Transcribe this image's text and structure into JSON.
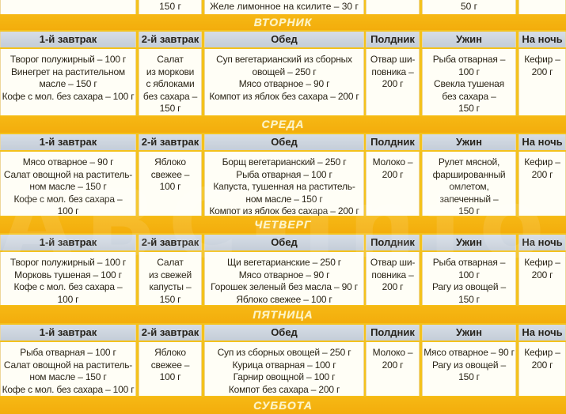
{
  "columns": [
    "1-й завтрак",
    "2-й завтрак",
    "Обед",
    "Полдник",
    "Ужин",
    "На ночь"
  ],
  "top_partial_row": {
    "c1": "",
    "c2": "150 г",
    "c3": "Желе лимонное на ксилите – 30 г",
    "c4": "",
    "c5": "50 г",
    "c6": ""
  },
  "days": [
    {
      "name": "ВТОРНИК",
      "meals": {
        "breakfast1": [
          "Творог полужирный – 100 г",
          "Винегрет на растительном",
          "масле – 150 г",
          "Кофе с мол. без сахара – 100 г"
        ],
        "breakfast2": [
          "Салат",
          "из моркови",
          "с яблоками",
          "без сахара –",
          "150 г"
        ],
        "lunch": [
          "Суп вегетарианский из сборных",
          "овощей – 250 г",
          "Мясо отварное – 90 г",
          "Компот из яблок без сахара – 200 г"
        ],
        "snack": [
          "Отвар ши-",
          "повника –",
          "200 г"
        ],
        "dinner": [
          "Рыба отварная –",
          "100 г",
          "Свекла тушеная",
          "без сахара –",
          "150 г"
        ],
        "night": [
          "Кефир –",
          "200 г"
        ]
      }
    },
    {
      "name": "СРЕДА",
      "meals": {
        "breakfast1": [
          "Мясо отварное – 90 г",
          "Салат овощной на раститель-",
          "ном масле – 150 г",
          "Кофе с мол. без сахара –",
          "100 г"
        ],
        "breakfast2": [
          "Яблоко",
          "свежее –",
          "100 г"
        ],
        "lunch": [
          "Борщ вегетарианский – 250 г",
          "Рыба отварная – 100 г",
          "Капуста, тушенная на раститель-",
          "ном масле – 150 г",
          "Компот из яблок без сахара – 200 г"
        ],
        "snack": [
          "Молоко –",
          "200 г"
        ],
        "dinner": [
          "Рулет мясной,",
          "фаршированный",
          "омлетом,",
          "запеченный –",
          "150 г"
        ],
        "night": [
          "Кефир –",
          "200 г"
        ]
      }
    },
    {
      "name": "ЧЕТВЕРГ",
      "meals": {
        "breakfast1": [
          "Творог полужирный – 100 г",
          "Морковь тушеная – 100 г",
          "Кофе с мол. без сахара –",
          "100 г"
        ],
        "breakfast2": [
          "Салат",
          "из свежей",
          "капусты –",
          "150 г"
        ],
        "lunch": [
          "Щи вегетарианские – 250 г",
          "Мясо отварное – 90 г",
          "Горошек зеленый без масла – 90 г",
          "Яблоко свежее – 100 г"
        ],
        "snack": [
          "Отвар ши-",
          "повника –",
          "200 г"
        ],
        "dinner": [
          "Рыба отварная –",
          "100 г",
          "Рагу из овощей –",
          "150 г"
        ],
        "night": [
          "Кефир –",
          "200 г"
        ]
      }
    },
    {
      "name": "ПЯТНИЦА",
      "meals": {
        "breakfast1": [
          "Рыба отварная – 100 г",
          "Салат овощной на раститель-",
          "ном масле – 150 г",
          "Кофе с мол. без сахара – 100 г"
        ],
        "breakfast2": [
          "Яблоко",
          "свежее –",
          "100 г"
        ],
        "lunch": [
          "Суп из сборных овощей – 250 г",
          "Курица отварная – 100 г",
          "Гарнир овощной – 100 г",
          "Компот без сахара – 200 г"
        ],
        "snack": [
          "Молоко –",
          "200 г"
        ],
        "dinner": [
          "Мясо отварное – 90 г",
          "Рагу из овощей –",
          "150 г"
        ],
        "night": [
          "Кефир –",
          "200 г"
        ]
      }
    }
  ],
  "next_day_banner": "СУББОТА",
  "watermark": "ABC-Info.ru",
  "colors": {
    "banner": "#f4b410",
    "header": "#cdd5df",
    "cell": "#fffef6",
    "border": "#eed79a",
    "banner_text": "#fdf4c8"
  }
}
